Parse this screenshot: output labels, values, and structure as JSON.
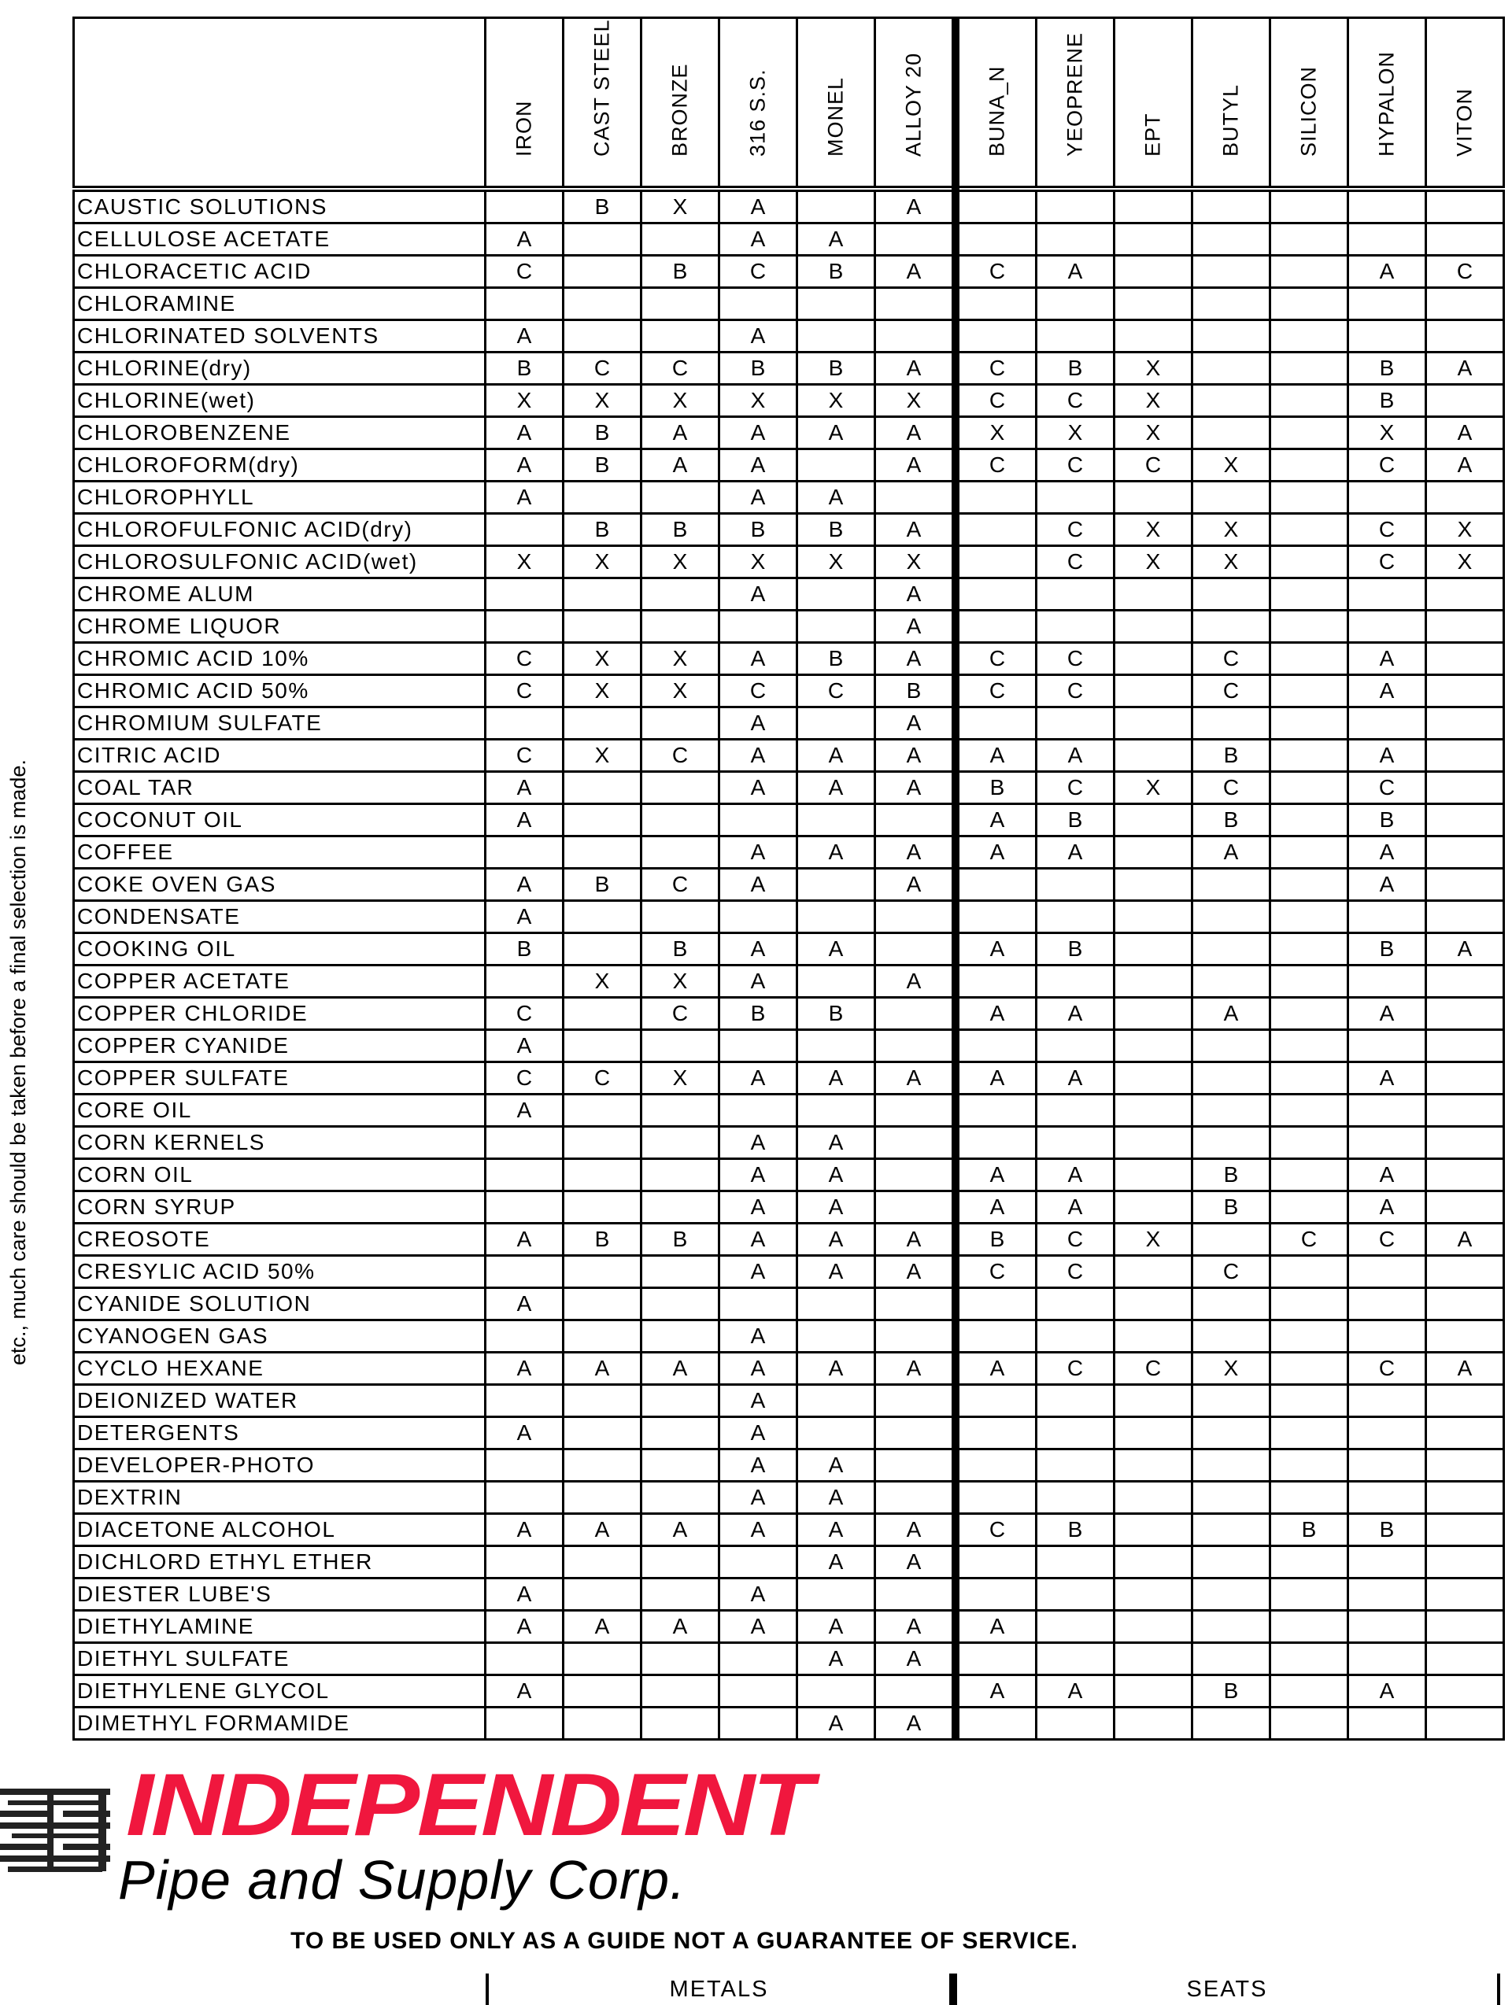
{
  "side_note": "etc., much care should be taken before a final selection is made.",
  "columns": [
    "IRON",
    "CAST STEEL",
    "BRONZE",
    "316 S.S.",
    "MONEL",
    "ALLOY 20",
    "BUNA_N",
    "YEOPRENE",
    "EPT",
    "BUTYL",
    "SILICON",
    "HYPALON",
    "VITON"
  ],
  "rows": [
    {
      "name": "CAUSTIC SOLUTIONS",
      "v": [
        "",
        "B",
        "X",
        "A",
        "",
        "A",
        "",
        "",
        "",
        "",
        "",
        "",
        ""
      ]
    },
    {
      "name": "CELLULOSE ACETATE",
      "v": [
        "A",
        "",
        "",
        "A",
        "A",
        "",
        "",
        "",
        "",
        "",
        "",
        "",
        ""
      ]
    },
    {
      "name": "CHLORACETIC ACID",
      "v": [
        "C",
        "",
        "B",
        "C",
        "B",
        "A",
        "C",
        "A",
        "",
        "",
        "",
        "A",
        "C"
      ]
    },
    {
      "name": "CHLORAMINE",
      "v": [
        "",
        "",
        "",
        "",
        "",
        "",
        "",
        "",
        "",
        "",
        "",
        "",
        ""
      ]
    },
    {
      "name": "CHLORINATED SOLVENTS",
      "v": [
        "A",
        "",
        "",
        "A",
        "",
        "",
        "",
        "",
        "",
        "",
        "",
        "",
        ""
      ]
    },
    {
      "name": "CHLORINE(dry)",
      "v": [
        "B",
        "C",
        "C",
        "B",
        "B",
        "A",
        "C",
        "B",
        "X",
        "",
        "",
        "B",
        "A"
      ]
    },
    {
      "name": "CHLORINE(wet)",
      "v": [
        "X",
        "X",
        "X",
        "X",
        "X",
        "X",
        "C",
        "C",
        "X",
        "",
        "",
        "B",
        ""
      ]
    },
    {
      "name": "CHLOROBENZENE",
      "v": [
        "A",
        "B",
        "A",
        "A",
        "A",
        "A",
        "X",
        "X",
        "X",
        "",
        "",
        "X",
        "A"
      ]
    },
    {
      "name": "CHLOROFORM(dry)",
      "v": [
        "A",
        "B",
        "A",
        "A",
        "",
        "A",
        "C",
        "C",
        "C",
        "X",
        "",
        "C",
        "A"
      ]
    },
    {
      "name": "CHLOROPHYLL",
      "v": [
        "A",
        "",
        "",
        "A",
        "A",
        "",
        "",
        "",
        "",
        "",
        "",
        "",
        ""
      ]
    },
    {
      "name": "CHLOROFULFONIC ACID(dry)",
      "v": [
        "",
        "B",
        "B",
        "B",
        "B",
        "A",
        "",
        "C",
        "X",
        "X",
        "",
        "C",
        "X"
      ]
    },
    {
      "name": "CHLOROSULFONIC ACID(wet)",
      "v": [
        "X",
        "X",
        "X",
        "X",
        "X",
        "X",
        "",
        "C",
        "X",
        "X",
        "",
        "C",
        "X"
      ]
    },
    {
      "name": "CHROME ALUM",
      "v": [
        "",
        "",
        "",
        "A",
        "",
        "A",
        "",
        "",
        "",
        "",
        "",
        "",
        ""
      ]
    },
    {
      "name": "CHROME LIQUOR",
      "v": [
        "",
        "",
        "",
        "",
        "",
        "A",
        "",
        "",
        "",
        "",
        "",
        "",
        ""
      ]
    },
    {
      "name": "CHROMIC ACID 10%",
      "v": [
        "C",
        "X",
        "X",
        "A",
        "B",
        "A",
        "C",
        "C",
        "",
        "C",
        "",
        "A",
        ""
      ]
    },
    {
      "name": "CHROMIC ACID 50%",
      "v": [
        "C",
        "X",
        "X",
        "C",
        "C",
        "B",
        "C",
        "C",
        "",
        "C",
        "",
        "A",
        ""
      ]
    },
    {
      "name": "CHROMIUM SULFATE",
      "v": [
        "",
        "",
        "",
        "A",
        "",
        "A",
        "",
        "",
        "",
        "",
        "",
        "",
        ""
      ]
    },
    {
      "name": "CITRIC ACID",
      "v": [
        "C",
        "X",
        "C",
        "A",
        "A",
        "A",
        "A",
        "A",
        "",
        "B",
        "",
        "A",
        ""
      ]
    },
    {
      "name": "COAL TAR",
      "v": [
        "A",
        "",
        "",
        "A",
        "A",
        "A",
        "B",
        "C",
        "X",
        "C",
        "",
        "C",
        ""
      ]
    },
    {
      "name": "COCONUT OIL",
      "v": [
        "A",
        "",
        "",
        "",
        "",
        "",
        "A",
        "B",
        "",
        "B",
        "",
        "B",
        ""
      ]
    },
    {
      "name": "COFFEE",
      "v": [
        "",
        "",
        "",
        "A",
        "A",
        "A",
        "A",
        "A",
        "",
        "A",
        "",
        "A",
        ""
      ]
    },
    {
      "name": "COKE OVEN GAS",
      "v": [
        "A",
        "B",
        "C",
        "A",
        "",
        "A",
        "",
        "",
        "",
        "",
        "",
        "A",
        ""
      ]
    },
    {
      "name": "CONDENSATE",
      "v": [
        "A",
        "",
        "",
        "",
        "",
        "",
        "",
        "",
        "",
        "",
        "",
        "",
        ""
      ]
    },
    {
      "name": "COOKING OIL",
      "v": [
        "B",
        "",
        "B",
        "A",
        "A",
        "",
        "A",
        "B",
        "",
        "",
        "",
        "B",
        "A"
      ]
    },
    {
      "name": "COPPER ACETATE",
      "v": [
        "",
        "X",
        "X",
        "A",
        "",
        "A",
        "",
        "",
        "",
        "",
        "",
        "",
        ""
      ]
    },
    {
      "name": "COPPER CHLORIDE",
      "v": [
        "C",
        "",
        "C",
        "B",
        "B",
        "",
        "A",
        "A",
        "",
        "A",
        "",
        "A",
        ""
      ]
    },
    {
      "name": "COPPER CYANIDE",
      "v": [
        "A",
        "",
        "",
        "",
        "",
        "",
        "",
        "",
        "",
        "",
        "",
        "",
        ""
      ]
    },
    {
      "name": "COPPER SULFATE",
      "v": [
        "C",
        "C",
        "X",
        "A",
        "A",
        "A",
        "A",
        "A",
        "",
        "",
        "",
        "A",
        ""
      ]
    },
    {
      "name": "CORE OIL",
      "v": [
        "A",
        "",
        "",
        "",
        "",
        "",
        "",
        "",
        "",
        "",
        "",
        "",
        ""
      ]
    },
    {
      "name": "CORN KERNELS",
      "v": [
        "",
        "",
        "",
        "A",
        "A",
        "",
        "",
        "",
        "",
        "",
        "",
        "",
        ""
      ]
    },
    {
      "name": "CORN OIL",
      "v": [
        "",
        "",
        "",
        "A",
        "A",
        "",
        "A",
        "A",
        "",
        "B",
        "",
        "A",
        ""
      ]
    },
    {
      "name": "CORN SYRUP",
      "v": [
        "",
        "",
        "",
        "A",
        "A",
        "",
        "A",
        "A",
        "",
        "B",
        "",
        "A",
        ""
      ]
    },
    {
      "name": "CREOSOTE",
      "v": [
        "A",
        "B",
        "B",
        "A",
        "A",
        "A",
        "B",
        "C",
        "X",
        "",
        "C",
        "C",
        "A"
      ]
    },
    {
      "name": "CRESYLIC ACID 50%",
      "v": [
        "",
        "",
        "",
        "A",
        "A",
        "A",
        "C",
        "C",
        "",
        "C",
        "",
        "",
        ""
      ]
    },
    {
      "name": "CYANIDE SOLUTION",
      "v": [
        "A",
        "",
        "",
        "",
        "",
        "",
        "",
        "",
        "",
        "",
        "",
        "",
        ""
      ]
    },
    {
      "name": "CYANOGEN GAS",
      "v": [
        "",
        "",
        "",
        "A",
        "",
        "",
        "",
        "",
        "",
        "",
        "",
        "",
        ""
      ]
    },
    {
      "name": "CYCLO HEXANE",
      "v": [
        "A",
        "A",
        "A",
        "A",
        "A",
        "A",
        "A",
        "C",
        "C",
        "X",
        "",
        "C",
        "A"
      ]
    },
    {
      "name": "DEIONIZED WATER",
      "v": [
        "",
        "",
        "",
        "A",
        "",
        "",
        "",
        "",
        "",
        "",
        "",
        "",
        ""
      ]
    },
    {
      "name": "DETERGENTS",
      "v": [
        "A",
        "",
        "",
        "A",
        "",
        "",
        "",
        "",
        "",
        "",
        "",
        "",
        ""
      ]
    },
    {
      "name": "DEVELOPER-PHOTO",
      "v": [
        "",
        "",
        "",
        "A",
        "A",
        "",
        "",
        "",
        "",
        "",
        "",
        "",
        ""
      ]
    },
    {
      "name": "DEXTRIN",
      "v": [
        "",
        "",
        "",
        "A",
        "A",
        "",
        "",
        "",
        "",
        "",
        "",
        "",
        ""
      ]
    },
    {
      "name": "DIACETONE ALCOHOL",
      "v": [
        "A",
        "A",
        "A",
        "A",
        "A",
        "A",
        "C",
        "B",
        "",
        "",
        "B",
        "B",
        ""
      ]
    },
    {
      "name": "DICHLORD ETHYL ETHER",
      "v": [
        "",
        "",
        "",
        "",
        "A",
        "A",
        "",
        "",
        "",
        "",
        "",
        "",
        ""
      ]
    },
    {
      "name": "DIESTER LUBE'S",
      "v": [
        "A",
        "",
        "",
        "A",
        "",
        "",
        "",
        "",
        "",
        "",
        "",
        "",
        ""
      ]
    },
    {
      "name": "DIETHYLAMINE",
      "v": [
        "A",
        "A",
        "A",
        "A",
        "A",
        "A",
        "A",
        "",
        "",
        "",
        "",
        "",
        ""
      ]
    },
    {
      "name": "DIETHYL SULFATE",
      "v": [
        "",
        "",
        "",
        "",
        "A",
        "A",
        "",
        "",
        "",
        "",
        "",
        "",
        ""
      ]
    },
    {
      "name": "DIETHYLENE GLYCOL",
      "v": [
        "A",
        "",
        "",
        "",
        "",
        "",
        "A",
        "A",
        "",
        "B",
        "",
        "A",
        ""
      ]
    },
    {
      "name": "DIMETHYL FORMAMIDE",
      "v": [
        "",
        "",
        "",
        "",
        "A",
        "A",
        "",
        "",
        "",
        "",
        "",
        "",
        ""
      ]
    }
  ],
  "logo": {
    "brand": "INDEPENDENT",
    "subtitle": "Pipe and Supply Corp.",
    "brand_color": "#f0173e"
  },
  "disclaimer": "TO BE USED ONLY AS A GUIDE NOT A GUARANTEE OF SERVICE.",
  "groups": {
    "metals": "METALS",
    "seats": "SEATS"
  }
}
